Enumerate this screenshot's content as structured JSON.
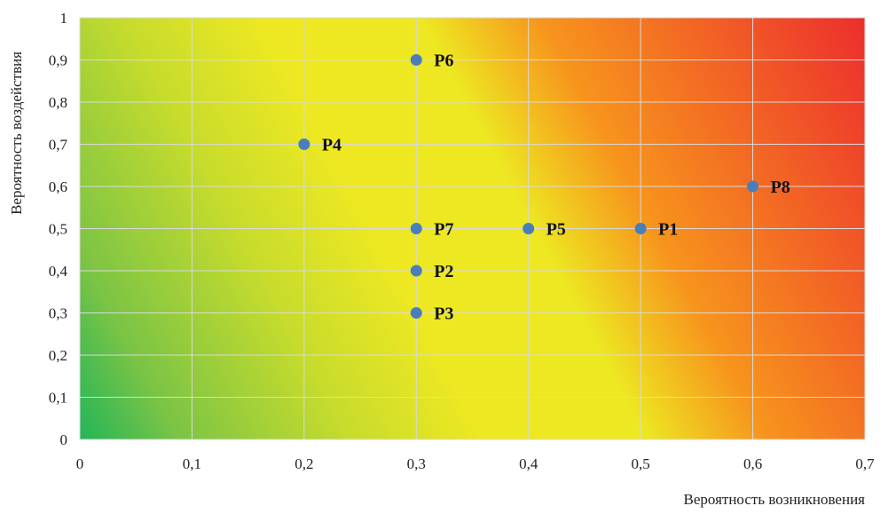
{
  "chart_data": {
    "type": "scatter",
    "title": "",
    "xlabel": "Вероятность возникновения",
    "ylabel": "Вероятность воздействия",
    "xlim": [
      0,
      0.7
    ],
    "ylim": [
      0,
      1
    ],
    "grid": true,
    "x_ticks": [
      0,
      0.1,
      0.2,
      0.3,
      0.4,
      0.5,
      0.6,
      0.7
    ],
    "y_ticks": [
      0,
      0.1,
      0.2,
      0.3,
      0.4,
      0.5,
      0.6,
      0.7,
      0.8,
      0.9,
      1
    ],
    "x_tick_labels": [
      "0",
      "0,1",
      "0,2",
      "0,3",
      "0,4",
      "0,5",
      "0,6",
      "0,7"
    ],
    "y_tick_labels": [
      "0",
      "0,1",
      "0,2",
      "0,3",
      "0,4",
      "0,5",
      "0,6",
      "0,7",
      "0,8",
      "0,9",
      "1"
    ],
    "background": "risk heatmap gradient from green (low) through yellow to red (high)",
    "colors": {
      "point": "#4a7ebb",
      "green": "#23b559",
      "yellow": "#ede822",
      "orange": "#f7941d",
      "red": "#ec2e2d",
      "grid": "#d9d9d9"
    },
    "points": [
      {
        "label": "P1",
        "x": 0.5,
        "y": 0.5
      },
      {
        "label": "P2",
        "x": 0.3,
        "y": 0.4
      },
      {
        "label": "P3",
        "x": 0.3,
        "y": 0.3
      },
      {
        "label": "P4",
        "x": 0.2,
        "y": 0.7
      },
      {
        "label": "P5",
        "x": 0.4,
        "y": 0.5
      },
      {
        "label": "P6",
        "x": 0.3,
        "y": 0.9
      },
      {
        "label": "P7",
        "x": 0.3,
        "y": 0.5
      },
      {
        "label": "P8",
        "x": 0.6,
        "y": 0.6
      }
    ]
  }
}
